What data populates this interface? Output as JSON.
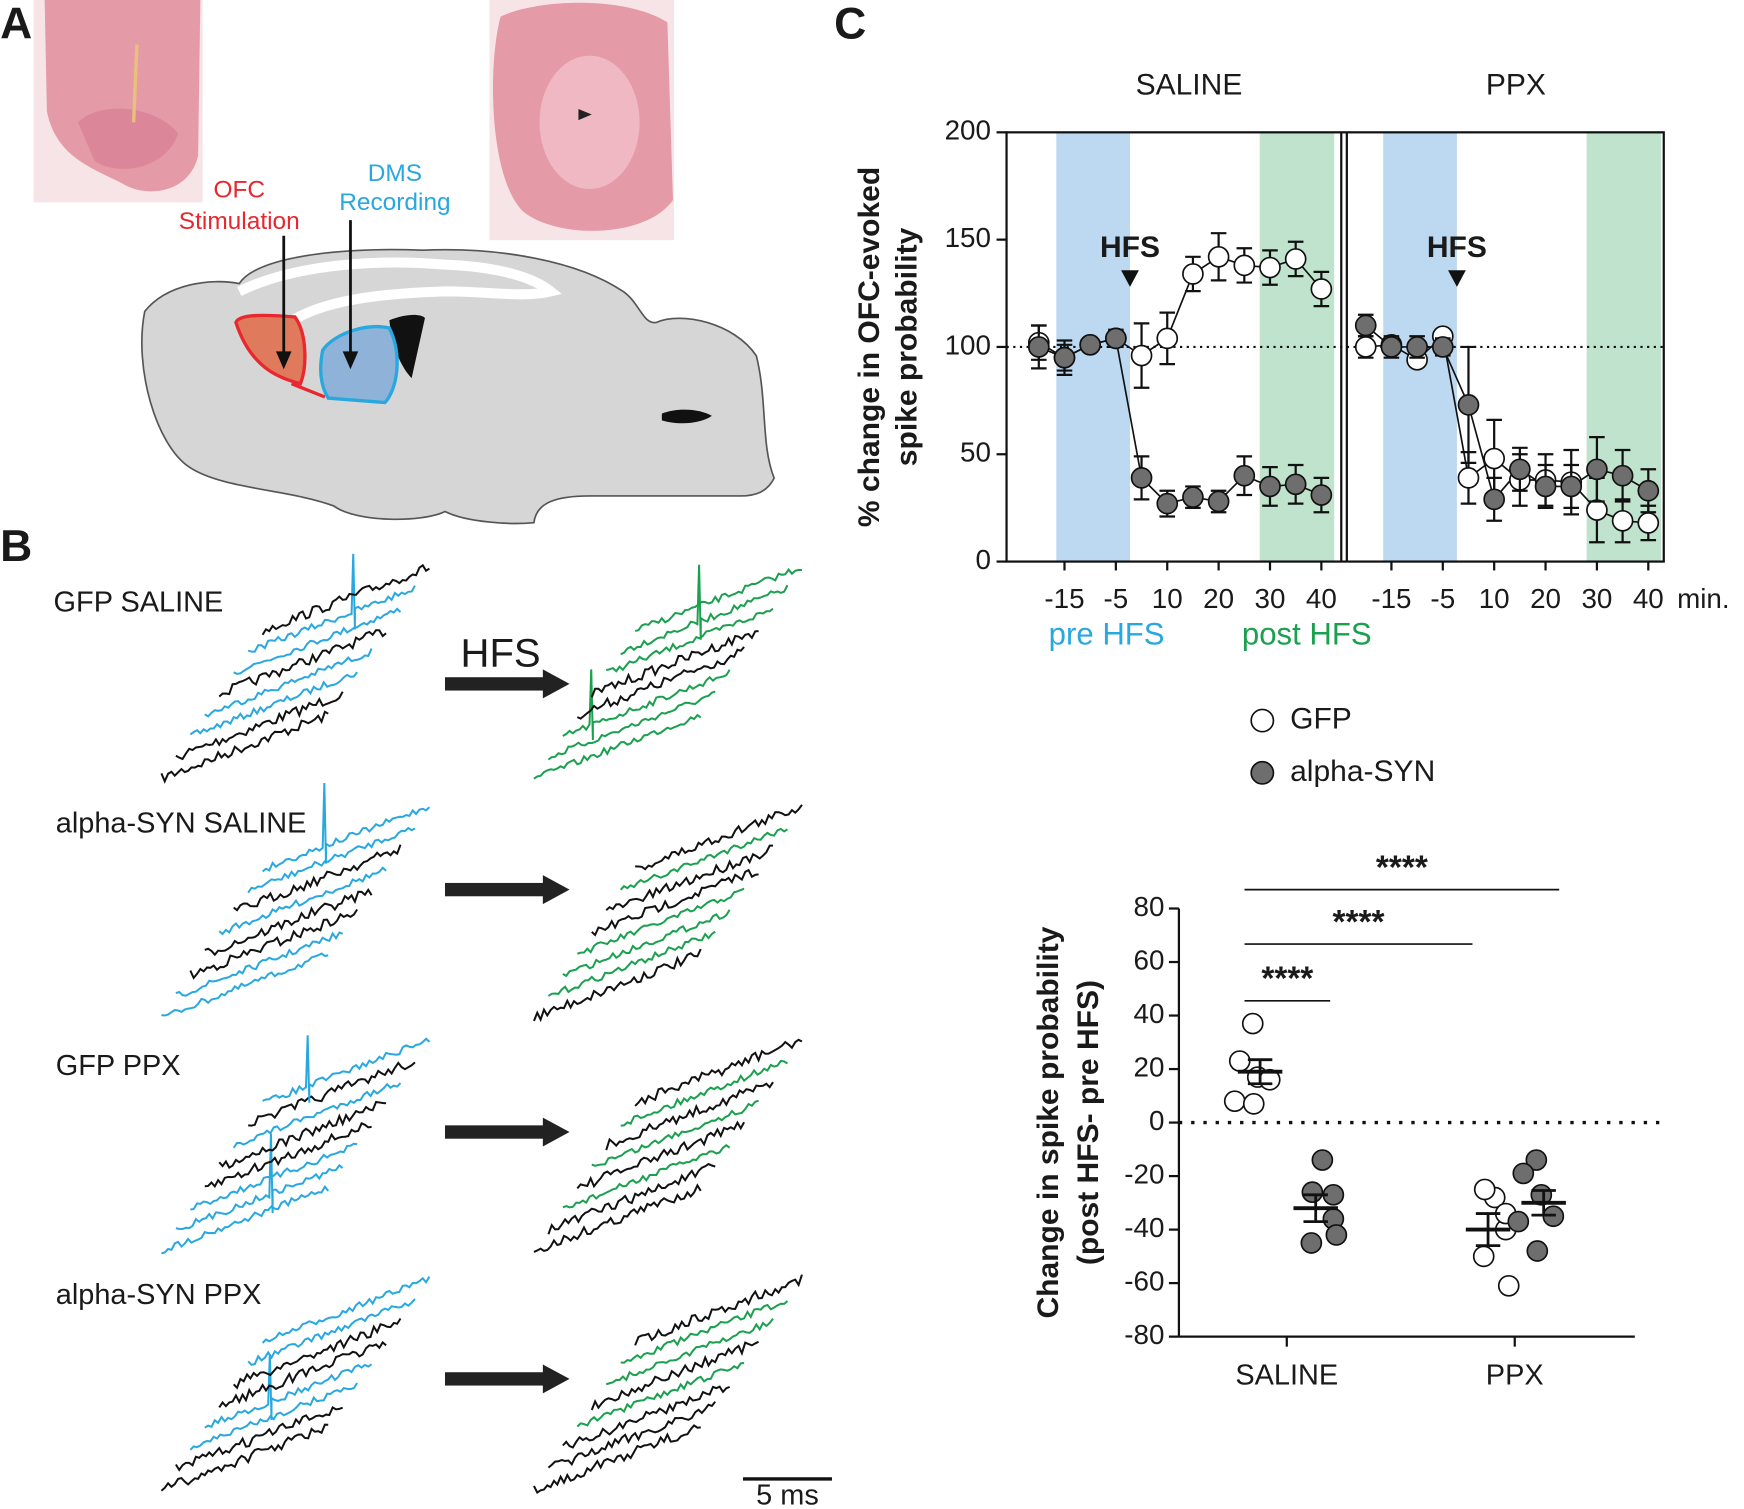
{
  "panels": {
    "a": "A",
    "b": "B",
    "c": "C"
  },
  "panel_a": {
    "ofc": [
      "OFC",
      "Stimulation"
    ],
    "dms": [
      "DMS",
      "Recording"
    ]
  },
  "panel_b": {
    "rows": [
      "GFP SALINE",
      "alpha-SYN SALINE",
      "GFP PPX",
      "alpha-SYN PPX"
    ],
    "arrow_label": "HFS",
    "scale_bar": "5 ms"
  },
  "chart_data": [
    {
      "type": "line",
      "ylabel": [
        "% change in OFC-evoked",
        "spike probability"
      ],
      "categories": [
        null,
        "-15",
        null,
        "-5",
        null,
        "10",
        null,
        "20",
        null,
        "30",
        null,
        "40"
      ],
      "x_unit": "min.",
      "ylim": [
        0,
        200
      ],
      "yticks": [
        0,
        50,
        100,
        150,
        200
      ],
      "reference_line": 100,
      "annotation": "HFS",
      "bands": [
        {
          "label": "pre HFS",
          "color": "#bcd9f1",
          "text_color": "#29a8e0"
        },
        {
          "label": "post HFS",
          "color": "#bfe3cc",
          "text_color": "#1aa04e"
        }
      ],
      "legend": [
        {
          "name": "GFP",
          "color": "#ffffff"
        },
        {
          "name": "alpha-SYN",
          "color": "#6e6e6e"
        }
      ],
      "facets": [
        {
          "title": "SALINE",
          "series": [
            {
              "values": [
                102,
                95,
                101,
                104,
                96,
                104,
                134,
                142,
                138,
                137,
                141,
                127
              ],
              "errors": [
                8,
                6,
                3,
                4,
                15,
                12,
                8,
                11,
                8,
                8,
                8,
                8
              ]
            },
            {
              "values": [
                100,
                95,
                101,
                104,
                39,
                27,
                30,
                28,
                40,
                35,
                36,
                31
              ],
              "errors": [
                10,
                8,
                3,
                3,
                10,
                6,
                5,
                5,
                9,
                9,
                9,
                8
              ]
            }
          ]
        },
        {
          "title": "PPX",
          "series": [
            {
              "values": [
                100,
                101,
                94,
                105,
                39,
                48,
                38,
                38,
                37,
                24,
                19,
                18
              ],
              "errors": [
                5,
                3,
                3,
                3,
                12,
                18,
                12,
                12,
                15,
                15,
                10,
                8
              ]
            },
            {
              "values": [
                110,
                100,
                100,
                100,
                73,
                29,
                43,
                35,
                35,
                43,
                40,
                33
              ],
              "errors": [
                5,
                5,
                5,
                4,
                27,
                10,
                10,
                10,
                10,
                15,
                12,
                10
              ]
            }
          ]
        }
      ]
    },
    {
      "type": "dot",
      "ylabel": [
        "Change in spike probability",
        "(post HFS- pre HFS)"
      ],
      "categories": [
        "SALINE",
        "PPX"
      ],
      "ylim": [
        -80,
        80
      ],
      "yticks": [
        -80,
        -60,
        -40,
        -20,
        0,
        20,
        40,
        60,
        80
      ],
      "reference_line": 0,
      "series": [
        {
          "color": "#ffffff",
          "values": [
            [
              37,
              23,
              17,
              16,
              8,
              7
            ],
            [
              -28,
              -25,
              -40,
              -34,
              -50,
              -61
            ]
          ],
          "mean": [
            19,
            -40
          ],
          "sem": [
            4.5,
            6
          ]
        },
        {
          "color": "#6e6e6e",
          "values": [
            [
              -14,
              -26,
              -27,
              -36,
              -45,
              -42
            ],
            [
              -14,
              -19,
              -27,
              -35,
              -37,
              -48
            ]
          ],
          "mean": [
            -32,
            -30
          ],
          "sem": [
            5,
            4.6
          ]
        }
      ],
      "significance": [
        "****",
        "****",
        "****"
      ]
    }
  ]
}
